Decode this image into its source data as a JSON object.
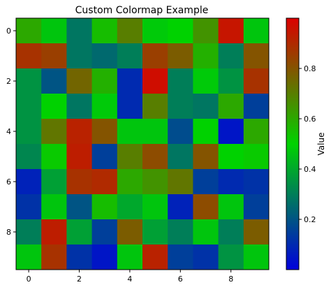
{
  "chart_data": {
    "type": "heatmap",
    "title": "Custom Colormap Example",
    "xlabel": "",
    "ylabel": "",
    "colorbar_label": "Value",
    "x_ticks": [
      0,
      2,
      4,
      6,
      8
    ],
    "y_ticks": [
      0,
      2,
      4,
      6,
      8
    ],
    "colorbar_ticks": [
      0.2,
      0.4,
      0.6,
      0.8
    ],
    "vmin": 0.0,
    "vmax": 1.0,
    "colormap": {
      "name": "custom blue-green-red",
      "stops": [
        {
          "pos": 0.0,
          "color": "#0000dc"
        },
        {
          "pos": 0.5,
          "color": "#00d200"
        },
        {
          "pos": 1.0,
          "color": "#dc0000"
        }
      ]
    },
    "values": [
      [
        0.6,
        0.47,
        0.28,
        0.55,
        0.7,
        0.48,
        0.5,
        0.65,
        0.95,
        0.47
      ],
      [
        0.88,
        0.85,
        0.28,
        0.25,
        0.3,
        0.85,
        0.78,
        0.58,
        0.3,
        0.8
      ],
      [
        0.35,
        0.2,
        0.76,
        0.58,
        0.1,
        0.97,
        0.3,
        0.48,
        0.35,
        0.88
      ],
      [
        0.35,
        0.5,
        0.28,
        0.48,
        0.1,
        0.7,
        0.3,
        0.28,
        0.6,
        0.15
      ],
      [
        0.35,
        0.72,
        0.92,
        0.8,
        0.47,
        0.47,
        0.18,
        0.5,
        0.05,
        0.6
      ],
      [
        0.32,
        0.52,
        0.93,
        0.15,
        0.7,
        0.82,
        0.28,
        0.8,
        0.5,
        0.52
      ],
      [
        0.08,
        0.38,
        0.88,
        0.9,
        0.6,
        0.65,
        0.72,
        0.15,
        0.1,
        0.12
      ],
      [
        0.12,
        0.47,
        0.2,
        0.55,
        0.4,
        0.47,
        0.08,
        0.82,
        0.47,
        0.15
      ],
      [
        0.3,
        0.93,
        0.38,
        0.15,
        0.78,
        0.38,
        0.3,
        0.47,
        0.3,
        0.78
      ],
      [
        0.47,
        0.88,
        0.12,
        0.05,
        0.47,
        0.92,
        0.15,
        0.12,
        0.35,
        0.47
      ]
    ],
    "grid": false
  }
}
